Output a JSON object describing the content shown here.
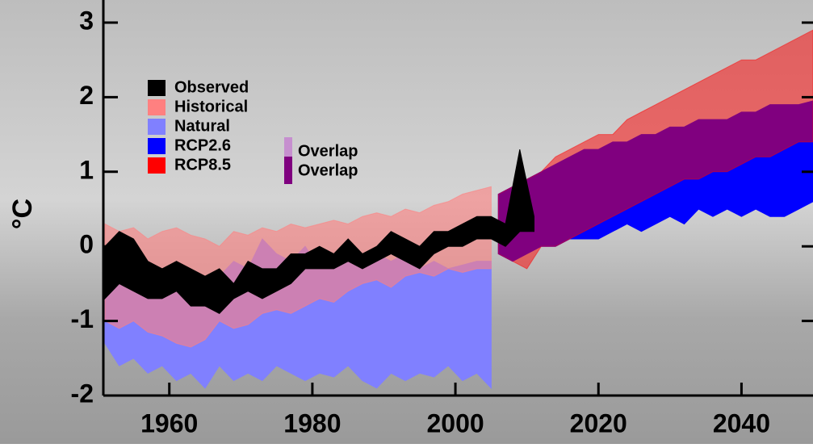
{
  "chart_data": {
    "type": "band",
    "y_label": "°C",
    "xlim": [
      1951,
      2050
    ],
    "xticks": [
      1960,
      1980,
      2000,
      2020,
      2040
    ],
    "ylim": [
      -2,
      3
    ],
    "yticks": [
      -2,
      -1,
      0,
      1,
      2,
      3
    ],
    "series": [
      {
        "name": "Observed",
        "color": "#000000",
        "opacity": 1,
        "x": [
          1951,
          1953,
          1955,
          1957,
          1959,
          1961,
          1963,
          1965,
          1967,
          1969,
          1971,
          1973,
          1975,
          1977,
          1979,
          1981,
          1983,
          1985,
          1987,
          1989,
          1991,
          1993,
          1995,
          1997,
          1999,
          2001,
          2003,
          2005,
          2007,
          2009,
          2011
        ],
        "upper": [
          0.0,
          0.2,
          0.1,
          -0.2,
          -0.3,
          -0.2,
          -0.3,
          -0.4,
          -0.3,
          -0.5,
          -0.2,
          -0.3,
          -0.3,
          -0.1,
          -0.1,
          0.0,
          -0.1,
          0.1,
          -0.1,
          0.0,
          0.2,
          0.1,
          0.0,
          0.2,
          0.2,
          0.3,
          0.4,
          0.4,
          0.3,
          1.3,
          0.4
        ],
        "lower": [
          -0.7,
          -0.5,
          -0.6,
          -0.7,
          -0.7,
          -0.6,
          -0.8,
          -0.8,
          -0.9,
          -0.7,
          -0.6,
          -0.7,
          -0.6,
          -0.5,
          -0.3,
          -0.3,
          -0.3,
          -0.2,
          -0.3,
          -0.2,
          -0.1,
          -0.2,
          -0.3,
          -0.1,
          0.0,
          0.0,
          0.1,
          0.1,
          0.0,
          0.2,
          0.2
        ]
      },
      {
        "name": "Historical",
        "color": "#ff8080",
        "opacity": 0.6,
        "x": [
          1951,
          1953,
          1955,
          1957,
          1959,
          1961,
          1963,
          1965,
          1967,
          1969,
          1971,
          1973,
          1975,
          1977,
          1979,
          1981,
          1983,
          1985,
          1987,
          1989,
          1991,
          1993,
          1995,
          1997,
          1999,
          2001,
          2003,
          2005
        ],
        "upper": [
          0.3,
          0.2,
          0.25,
          0.1,
          0.2,
          0.25,
          0.15,
          0.1,
          0.0,
          0.2,
          0.15,
          0.25,
          0.2,
          0.3,
          0.25,
          0.3,
          0.35,
          0.3,
          0.4,
          0.45,
          0.4,
          0.5,
          0.45,
          0.55,
          0.6,
          0.7,
          0.75,
          0.8
        ],
        "lower": [
          -1.0,
          -1.1,
          -1.0,
          -1.15,
          -1.2,
          -1.3,
          -1.35,
          -1.25,
          -1.0,
          -1.1,
          -1.05,
          -0.9,
          -0.85,
          -0.9,
          -0.8,
          -0.7,
          -0.75,
          -0.6,
          -0.5,
          -0.45,
          -0.55,
          -0.4,
          -0.35,
          -0.4,
          -0.3,
          -0.35,
          -0.3,
          -0.3
        ]
      },
      {
        "name": "Natural",
        "color": "#8080ff",
        "opacity": 1,
        "x": [
          1951,
          1953,
          1955,
          1957,
          1959,
          1961,
          1963,
          1965,
          1967,
          1969,
          1971,
          1973,
          1975,
          1977,
          1979,
          1981,
          1983,
          1985,
          1987,
          1989,
          1991,
          1993,
          1995,
          1997,
          1999,
          2001,
          2003,
          2005
        ],
        "upper": [
          -0.3,
          -0.4,
          -0.3,
          -0.5,
          -0.4,
          -0.35,
          -0.3,
          -0.5,
          -0.4,
          -0.2,
          -0.3,
          0.1,
          -0.1,
          -0.2,
          0.0,
          -0.3,
          -0.1,
          -0.2,
          -0.3,
          -0.1,
          -0.2,
          -0.1,
          -0.3,
          -0.2,
          -0.3,
          -0.25,
          -0.2,
          -0.2
        ],
        "lower": [
          -1.3,
          -1.6,
          -1.5,
          -1.7,
          -1.6,
          -1.8,
          -1.7,
          -1.9,
          -1.6,
          -1.8,
          -1.7,
          -1.8,
          -1.6,
          -1.7,
          -1.8,
          -1.7,
          -1.75,
          -1.6,
          -1.8,
          -1.9,
          -1.7,
          -1.8,
          -1.7,
          -1.75,
          -1.6,
          -1.8,
          -1.7,
          -1.9
        ]
      },
      {
        "name": "RCP2.6",
        "color": "#0000ff",
        "opacity": 1,
        "x": [
          2006,
          2008,
          2010,
          2012,
          2014,
          2016,
          2018,
          2020,
          2022,
          2024,
          2026,
          2028,
          2030,
          2032,
          2034,
          2036,
          2038,
          2040,
          2042,
          2044,
          2046,
          2048,
          2050
        ],
        "upper": [
          0.7,
          0.8,
          0.9,
          1.0,
          1.1,
          1.2,
          1.3,
          1.3,
          1.4,
          1.4,
          1.5,
          1.5,
          1.6,
          1.6,
          1.7,
          1.7,
          1.7,
          1.8,
          1.8,
          1.9,
          1.9,
          1.9,
          1.95
        ],
        "lower": [
          -0.1,
          -0.2,
          -0.1,
          0.0,
          0.0,
          0.1,
          0.1,
          0.1,
          0.2,
          0.3,
          0.2,
          0.3,
          0.4,
          0.3,
          0.5,
          0.4,
          0.5,
          0.4,
          0.5,
          0.4,
          0.4,
          0.5,
          0.6
        ]
      },
      {
        "name": "RCP8.5",
        "color": "#ff0000",
        "opacity": 0.5,
        "x": [
          2006,
          2008,
          2010,
          2012,
          2014,
          2016,
          2018,
          2020,
          2022,
          2024,
          2026,
          2028,
          2030,
          2032,
          2034,
          2036,
          2038,
          2040,
          2042,
          2044,
          2046,
          2048,
          2050
        ],
        "upper": [
          0.7,
          0.8,
          0.9,
          1.0,
          1.2,
          1.3,
          1.4,
          1.5,
          1.5,
          1.7,
          1.8,
          1.9,
          2.0,
          2.1,
          2.2,
          2.3,
          2.4,
          2.5,
          2.5,
          2.6,
          2.7,
          2.8,
          2.9
        ],
        "lower": [
          -0.1,
          -0.2,
          -0.3,
          0.0,
          0.0,
          0.1,
          0.2,
          0.3,
          0.4,
          0.5,
          0.6,
          0.7,
          0.8,
          0.9,
          0.9,
          1.0,
          1.0,
          1.1,
          1.2,
          1.2,
          1.3,
          1.4,
          1.4
        ]
      }
    ],
    "draw_order": [
      "Natural",
      "Historical",
      "RCP2.6",
      "RCP8.5",
      "Observed"
    ],
    "overlap_labels": [
      {
        "name": "Overlap",
        "color": "#c68fcf"
      },
      {
        "name": "Overlap",
        "color": "#7f007f"
      }
    ]
  }
}
